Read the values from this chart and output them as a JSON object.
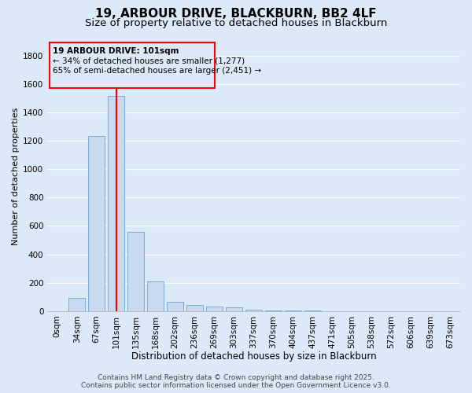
{
  "title_line1": "19, ARBOUR DRIVE, BLACKBURN, BB2 4LF",
  "title_line2": "Size of property relative to detached houses in Blackburn",
  "xlabel": "Distribution of detached houses by size in Blackburn",
  "ylabel": "Number of detached properties",
  "categories": [
    "0sqm",
    "34sqm",
    "67sqm",
    "101sqm",
    "135sqm",
    "168sqm",
    "202sqm",
    "236sqm",
    "269sqm",
    "303sqm",
    "337sqm",
    "370sqm",
    "404sqm",
    "437sqm",
    "471sqm",
    "505sqm",
    "538sqm",
    "572sqm",
    "606sqm",
    "639sqm",
    "673sqm"
  ],
  "values": [
    0,
    93,
    1235,
    1515,
    560,
    210,
    65,
    45,
    35,
    27,
    10,
    5,
    3,
    2,
    0,
    0,
    0,
    0,
    0,
    0,
    0
  ],
  "bar_color": "#c8d9f0",
  "bar_edge_color": "#7aadd4",
  "red_line_index": 3,
  "annotation_line1": "19 ARBOUR DRIVE: 101sqm",
  "annotation_line2": "← 34% of detached houses are smaller (1,277)",
  "annotation_line3": "65% of semi-detached houses are larger (2,451) →",
  "ylim": [
    0,
    1900
  ],
  "yticks": [
    0,
    200,
    400,
    600,
    800,
    1000,
    1200,
    1400,
    1600,
    1800
  ],
  "bg_color": "#dce9f8",
  "grid_color": "#ffffff",
  "footer_line1": "Contains HM Land Registry data © Crown copyright and database right 2025.",
  "footer_line2": "Contains public sector information licensed under the Open Government Licence v3.0.",
  "title_fontsize": 11,
  "subtitle_fontsize": 9.5,
  "xlabel_fontsize": 8.5,
  "ylabel_fontsize": 8,
  "tick_fontsize": 7.5,
  "annotation_fontsize": 7.5,
  "footer_fontsize": 6.5
}
